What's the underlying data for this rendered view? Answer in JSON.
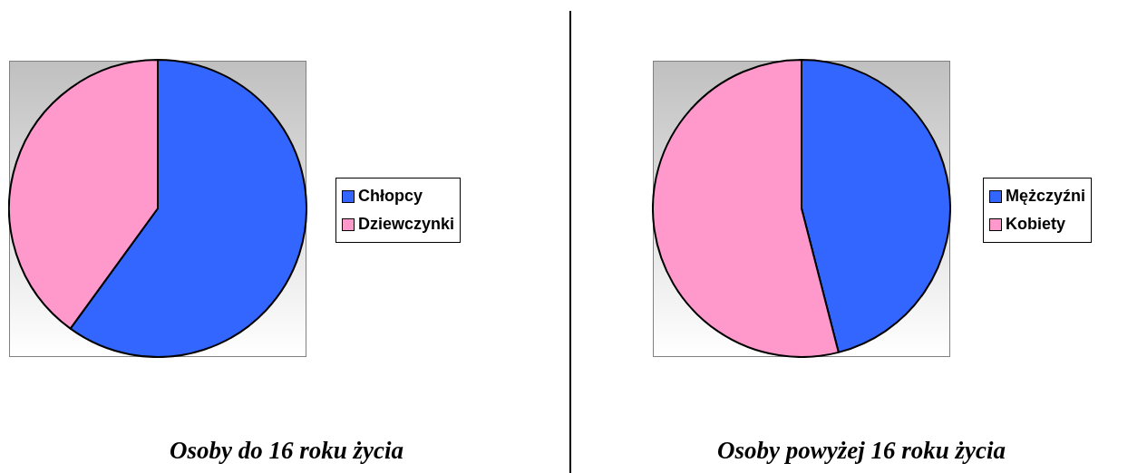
{
  "chart_data": [
    {
      "type": "pie",
      "title": "Osoby do 16 roku życia",
      "categories": [
        "Chłopcy",
        "Dziewczynki"
      ],
      "values": [
        60,
        40
      ],
      "colors": [
        "#3366ff",
        "#ff99cc"
      ],
      "legend": "right"
    },
    {
      "type": "pie",
      "title": "Osoby powyżej 16 roku życia",
      "categories": [
        "Mężczyźni",
        "Kobiety"
      ],
      "values": [
        46,
        54
      ],
      "colors": [
        "#3366ff",
        "#ff99cc"
      ],
      "legend": "right"
    }
  ]
}
